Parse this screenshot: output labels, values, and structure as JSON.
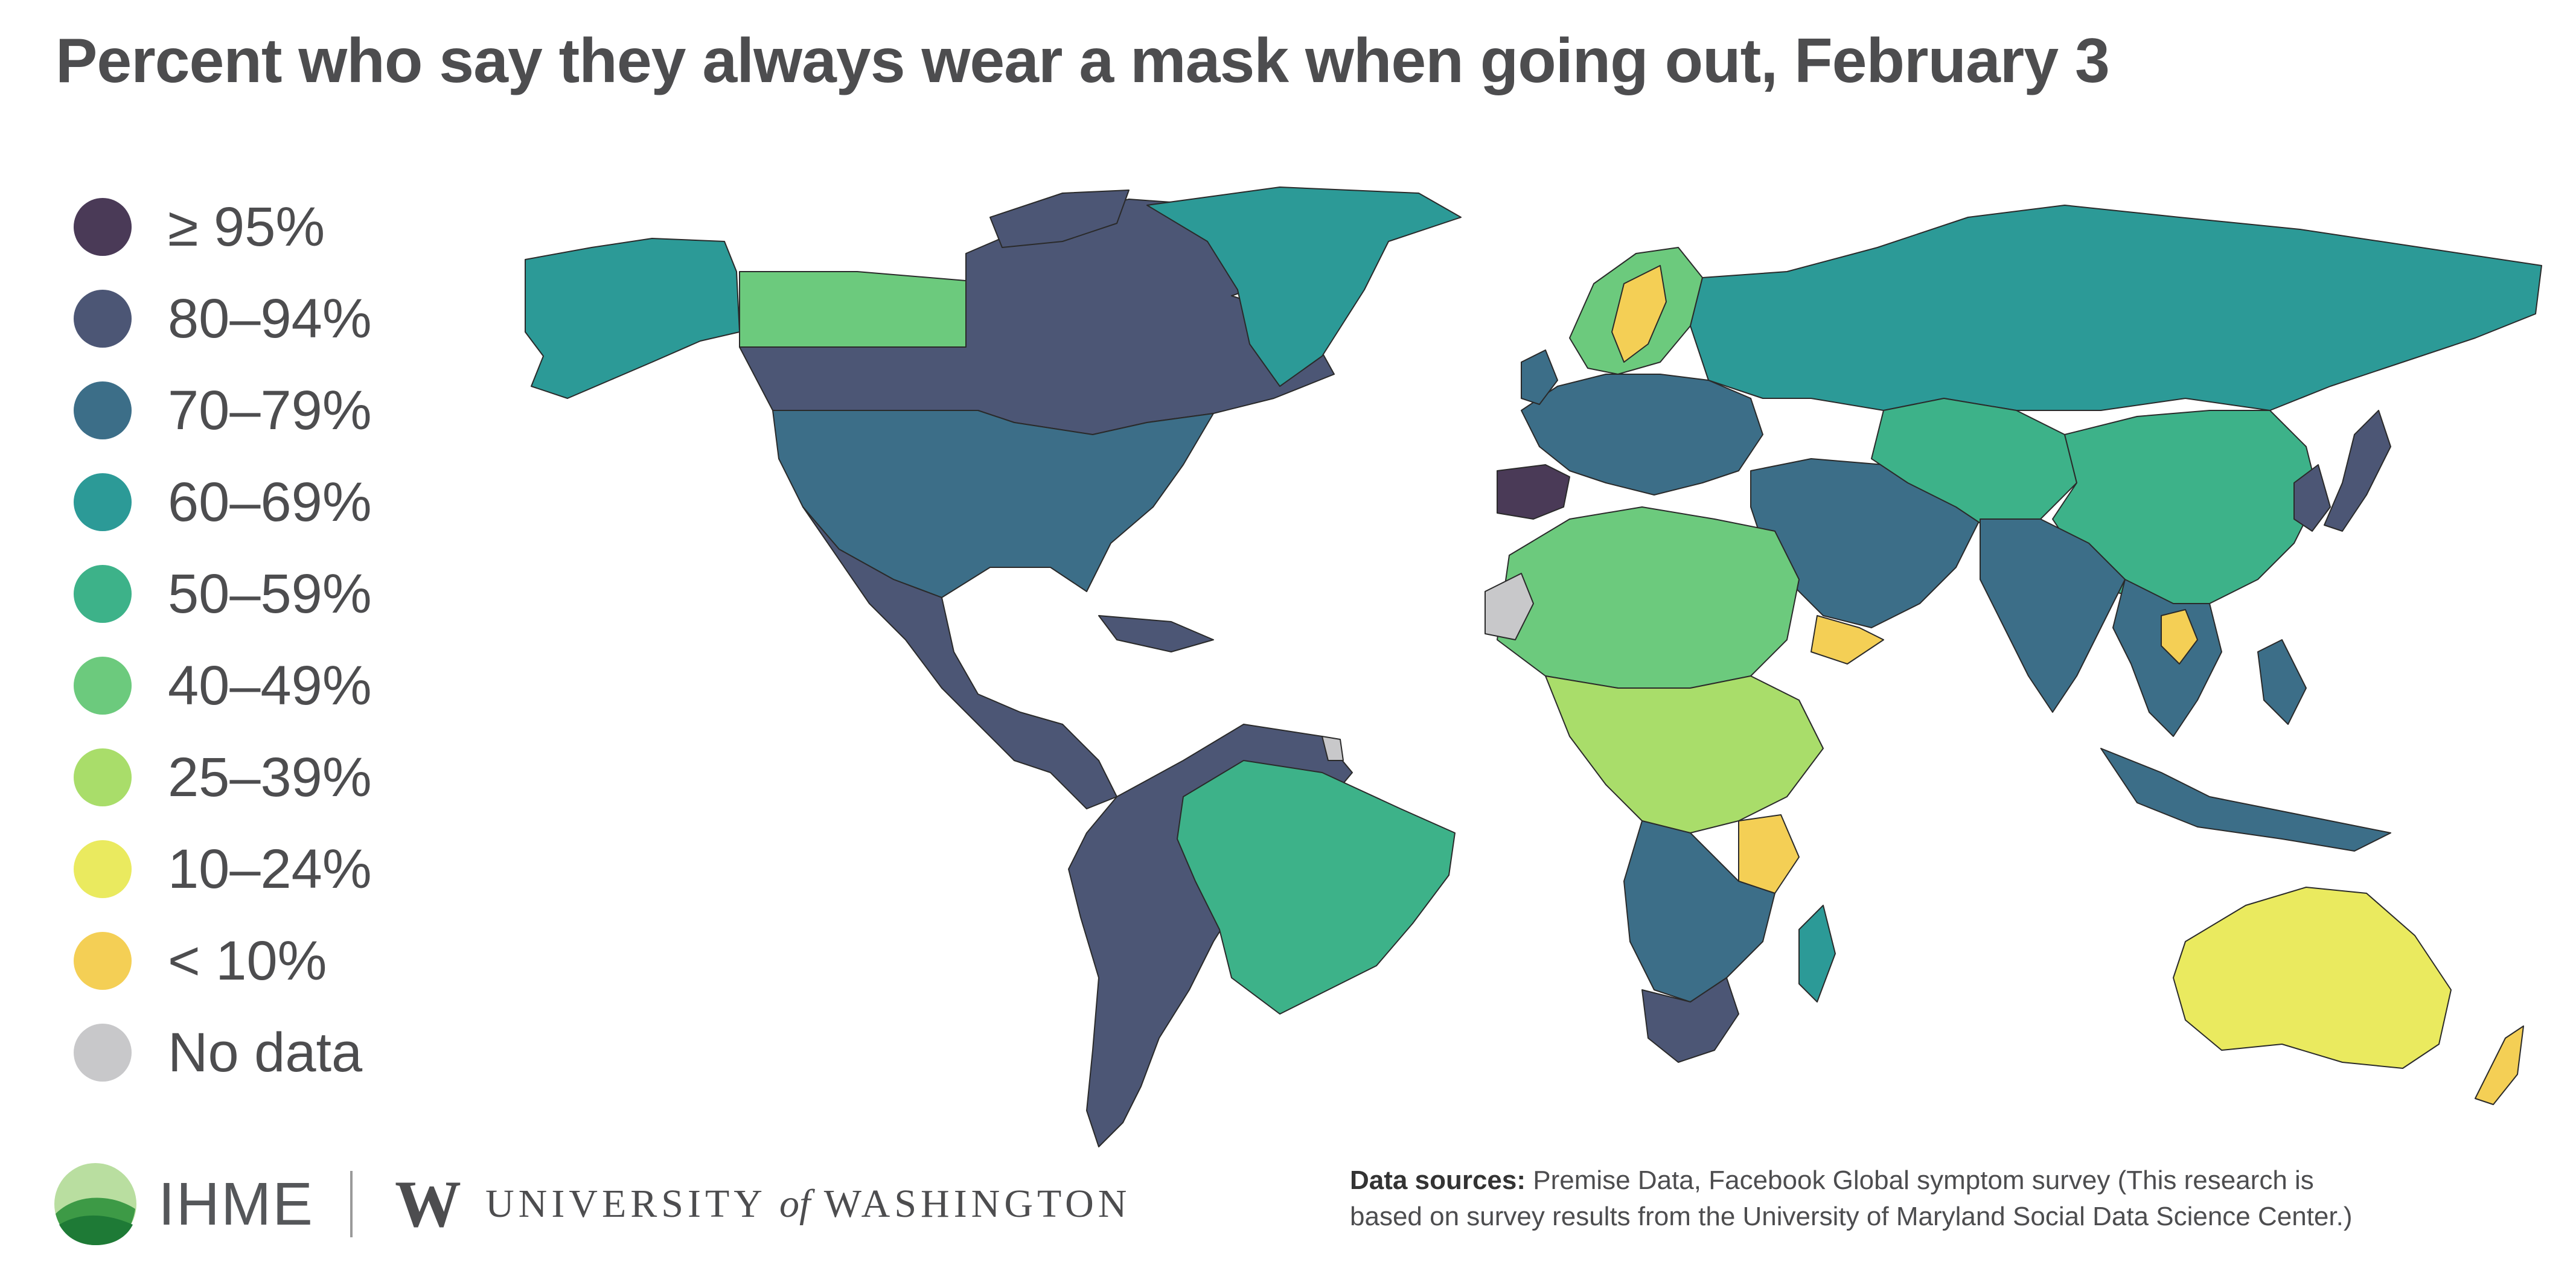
{
  "title": "Percent who say they always wear a mask when going out, February 3",
  "legend": [
    {
      "label": "≥ 95%",
      "color": "#4a3a57"
    },
    {
      "label": "80–94%",
      "color": "#4c5675"
    },
    {
      "label": "70–79%",
      "color": "#3c6e88"
    },
    {
      "label": "60–69%",
      "color": "#2c9a97"
    },
    {
      "label": "50–59%",
      "color": "#3db289"
    },
    {
      "label": "40–49%",
      "color": "#6cca7d"
    },
    {
      "label": "25–39%",
      "color": "#a9dd6a"
    },
    {
      "label": "10–24%",
      "color": "#eaea5f"
    },
    {
      "label": "< 10%",
      "color": "#f4cf55"
    },
    {
      "label": "No data",
      "color": "#c8c8ca"
    }
  ],
  "map": {
    "regions": [
      {
        "name": "canada",
        "category": "80–94%"
      },
      {
        "name": "alaska",
        "category": "60–69%"
      },
      {
        "name": "western-canada",
        "category": "40–49%"
      },
      {
        "name": "greenland",
        "category": "60–69%"
      },
      {
        "name": "united-states",
        "category": "70–79%"
      },
      {
        "name": "mexico-central-america",
        "category": "80–94%"
      },
      {
        "name": "south-america",
        "category": "80–94%"
      },
      {
        "name": "brazil",
        "category": "50–59%"
      },
      {
        "name": "western-europe",
        "category": "70–79%"
      },
      {
        "name": "spain",
        "category": "≥ 95%"
      },
      {
        "name": "scandinavia",
        "category": "40–49%"
      },
      {
        "name": "sweden",
        "category": "< 10%"
      },
      {
        "name": "russia",
        "category": "60–69%"
      },
      {
        "name": "north-africa",
        "category": "40–49%"
      },
      {
        "name": "central-africa",
        "category": "25–39%"
      },
      {
        "name": "southern-africa",
        "category": "70–79%"
      },
      {
        "name": "south-africa",
        "category": "80–94%"
      },
      {
        "name": "tanzania",
        "category": "< 10%"
      },
      {
        "name": "madagascar",
        "category": "60–69%"
      },
      {
        "name": "middle-east",
        "category": "70–79%"
      },
      {
        "name": "yemen",
        "category": "< 10%"
      },
      {
        "name": "central-asia",
        "category": "50–59%"
      },
      {
        "name": "china",
        "category": "50–59%"
      },
      {
        "name": "south-asia",
        "category": "70–79%"
      },
      {
        "name": "southeast-asia",
        "category": "70–79%"
      },
      {
        "name": "laos",
        "category": "< 10%"
      },
      {
        "name": "indonesia",
        "category": "70–79%"
      },
      {
        "name": "japan-korea",
        "category": "80–94%"
      },
      {
        "name": "australia",
        "category": "10–24%"
      },
      {
        "name": "new-zealand",
        "category": "< 10%"
      },
      {
        "name": "western-sahara",
        "category": "No data"
      },
      {
        "name": "french-guiana",
        "category": "No data"
      }
    ]
  },
  "footer": {
    "ihme": "IHME",
    "uw_mark": "W",
    "uw_university": "UNIVERSITY",
    "uw_of": "of",
    "uw_washington": "WASHINGTON",
    "sources_label": "Data sources:",
    "sources_text": " Premise Data, Facebook Global symptom survey (This research is based on survey results from the University of Maryland Social Data Science Center.)"
  }
}
